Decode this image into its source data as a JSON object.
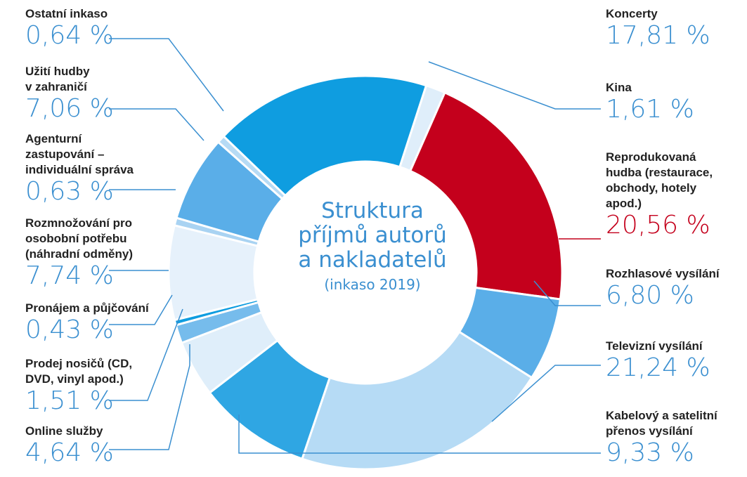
{
  "chart_data": {
    "type": "pie",
    "title": "Struktura\npříjmů autorů\na nakladatelů",
    "subtitle": "(inkaso 2019)",
    "unit": "%",
    "slices": [
      {
        "label": "Kina",
        "value": 1.61,
        "display": "1,61 %",
        "color": "#dfeefa"
      },
      {
        "label": "Reprodukovaná\nhudba (restaurace,\nobchody, hotely\napod.)",
        "value": 20.56,
        "display": "20,56 %",
        "color": "#c4001c"
      },
      {
        "label": "Rozhlasové vysílání",
        "value": 6.8,
        "display": "6,80 %",
        "color": "#5aaee8"
      },
      {
        "label": "Televizní vysílání",
        "value": 21.24,
        "display": "21,24 %",
        "color": "#b6dbf5"
      },
      {
        "label": "Kabelový a satelitní\npřenos vysílání",
        "value": 9.33,
        "display": "9,33 %",
        "color": "#2fa6e3"
      },
      {
        "label": "Online služby",
        "value": 4.64,
        "display": "4,64 %",
        "color": "#dfeefa"
      },
      {
        "label": "Prodej nosičů (CD,\nDVD, vinyl apod.)",
        "value": 1.51,
        "display": "1,51 %",
        "color": "#76bcec"
      },
      {
        "label": "Pronájem a půjčování",
        "value": 0.43,
        "display": "0,43 %",
        "color": "#0f9de0"
      },
      {
        "label": "Rozmnožování pro\nosobobní potřebu\n(náhradní odměny)",
        "value": 7.74,
        "display": "7,74 %",
        "color": "#e6f1fb"
      },
      {
        "label": "Agenturní\nzastupování –\nindividuální správa",
        "value": 0.63,
        "display": "0,63 %",
        "color": "#a9d3f2"
      },
      {
        "label": "Užití hudby\nv zahraničí",
        "value": 7.06,
        "display": "7,06 %",
        "color": "#5aaee8"
      },
      {
        "label": "Ostatní inkaso",
        "value": 0.64,
        "display": "0,64 %",
        "color": "#b6dbf5"
      },
      {
        "label": "Koncerty",
        "value": 17.81,
        "display": "17,81 %",
        "color": "#0f9de0"
      }
    ]
  }
}
